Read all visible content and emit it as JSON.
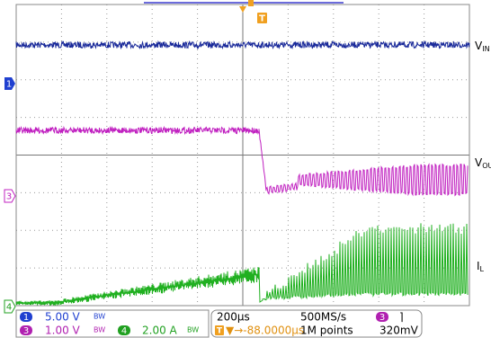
{
  "trigger_marker": "T",
  "channel_markers": [
    "1",
    "3",
    "4"
  ],
  "trace_labels": [
    {
      "main": "V",
      "sub": "IN"
    },
    {
      "main": "V",
      "sub": "OUT"
    },
    {
      "main": "I",
      "sub": "L"
    }
  ],
  "status": {
    "channels": [
      {
        "id": "1",
        "scale": "5.00 V",
        "bandwidth": "BW"
      },
      {
        "id": "3",
        "scale": "1.00 V",
        "bandwidth": "BW"
      },
      {
        "id": "4",
        "scale": "2.00 A",
        "bandwidth": "BW"
      }
    ],
    "timebase": "200µs",
    "sample_rate": "500MS/s",
    "trigger_channel": "3",
    "trigger_slope": "⌉",
    "trigger_position": "▼→-88.0000µs",
    "record_length": "1M points",
    "trigger_level": "320mV"
  }
}
